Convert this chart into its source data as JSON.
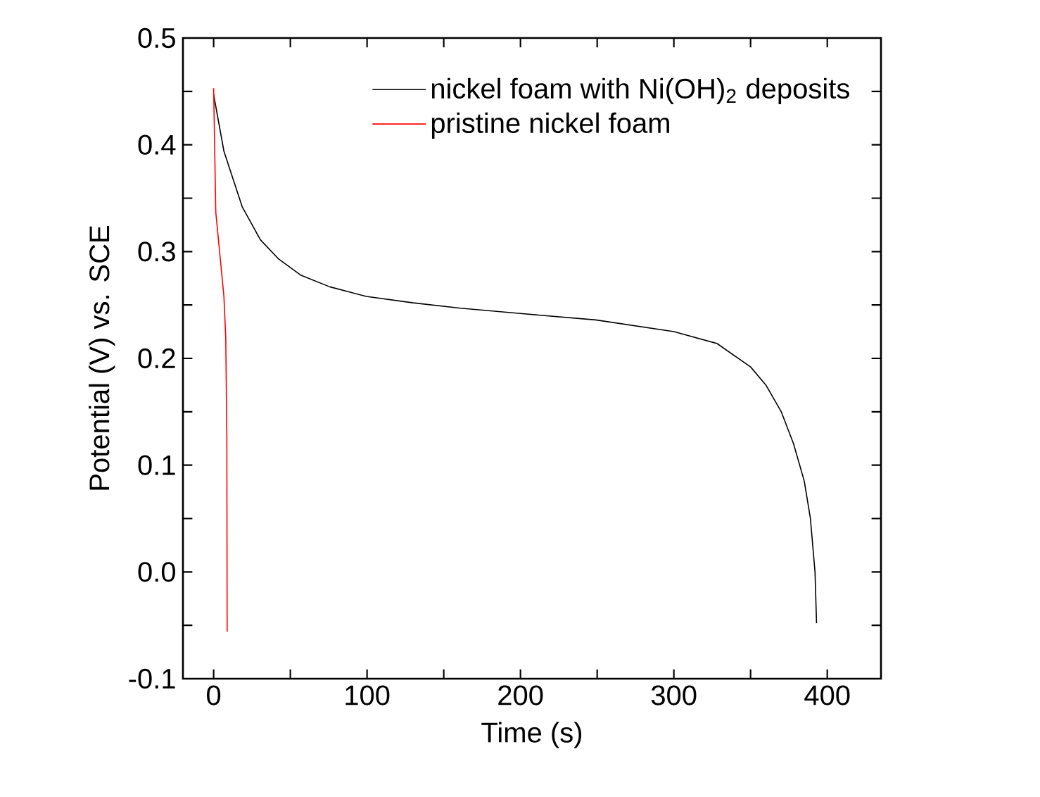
{
  "chart_data": {
    "type": "line",
    "xlabel": "Time (s)",
    "ylabel": "Potential (V) vs. SCE",
    "xlim": [
      -20,
      435
    ],
    "ylim": [
      -0.1,
      0.5
    ],
    "xticks": [
      0,
      {
        "value": 50,
        "label": null
      },
      100,
      {
        "value": 150,
        "label": null
      },
      200,
      {
        "value": 250,
        "label": null
      },
      300,
      {
        "value": 350,
        "label": null
      },
      400
    ],
    "yticks": [
      -0.1,
      {
        "value": -0.05,
        "label": null
      },
      {
        "value": 0,
        "label": "0.0"
      },
      {
        "value": 0.05,
        "label": null
      },
      0.1,
      {
        "value": 0.15,
        "label": null
      },
      0.2,
      {
        "value": 0.25,
        "label": null
      },
      0.3,
      {
        "value": 0.35,
        "label": null
      },
      0.4,
      {
        "value": 0.45,
        "label": null
      },
      0.5
    ],
    "legend": "top right",
    "grid": false,
    "marker": "none",
    "line_style": "solid",
    "series": [
      {
        "name": "nickel foam with Ni(OH)$_{2}$ deposits",
        "color": "#000000",
        "x": [
          0,
          6.7,
          18.6,
          30.5,
          42.4,
          56.7,
          75.7,
          99.5,
          130,
          161,
          200,
          249,
          300,
          328,
          350,
          360,
          370,
          378,
          385,
          389,
          392,
          393
        ],
        "values": [
          0.447,
          0.394,
          0.342,
          0.311,
          0.293,
          0.278,
          0.267,
          0.258,
          0.252,
          0.247,
          0.242,
          0.236,
          0.225,
          0.214,
          0.192,
          0.175,
          0.15,
          0.12,
          0.085,
          0.05,
          0.0,
          -0.048
        ]
      },
      {
        "name": "pristine nickel foam",
        "color": "#ff0000",
        "x": [
          0,
          1.4,
          6.7,
          7.9,
          8.6,
          8.8
        ],
        "values": [
          0.453,
          0.337,
          0.258,
          0.219,
          0.126,
          -0.056
        ]
      }
    ]
  }
}
